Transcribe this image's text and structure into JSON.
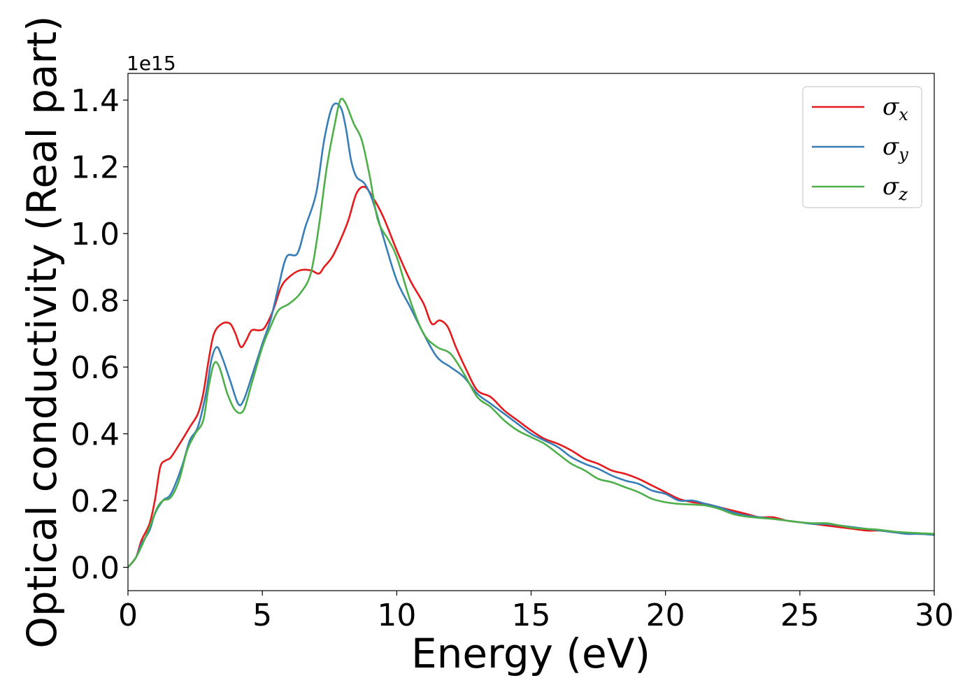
{
  "chart_data": {
    "type": "line",
    "title": "",
    "xlabel": "Energy (eV)",
    "ylabel": "Optical conductivity (Real part)",
    "y_offset_text": "1e15",
    "xlim": [
      0,
      30
    ],
    "ylim": [
      -0.07,
      1.48
    ],
    "y_scale_multiplier": 1000000000000000.0,
    "x_ticks": [
      0,
      5,
      10,
      15,
      20,
      25,
      30
    ],
    "x_tick_labels": [
      "0",
      "5",
      "10",
      "15",
      "20",
      "25",
      "30"
    ],
    "y_ticks": [
      0.0,
      0.2,
      0.4,
      0.6,
      0.8,
      1.0,
      1.2,
      1.4
    ],
    "y_tick_labels": [
      "0.0",
      "0.2",
      "0.4",
      "0.6",
      "0.8",
      "1.0",
      "1.2",
      "1.4"
    ],
    "grid": false,
    "legend_position": "top-right",
    "series": [
      {
        "name": "σx",
        "legend_symbol": "σ",
        "legend_subscript": "x",
        "color": "#e41a1c",
        "points": [
          [
            0,
            0
          ],
          [
            0.3,
            0.03
          ],
          [
            0.5,
            0.08
          ],
          [
            0.8,
            0.13
          ],
          [
            1.0,
            0.2
          ],
          [
            1.2,
            0.3
          ],
          [
            1.4,
            0.32
          ],
          [
            1.6,
            0.33
          ],
          [
            2.0,
            0.38
          ],
          [
            2.3,
            0.42
          ],
          [
            2.6,
            0.46
          ],
          [
            2.8,
            0.52
          ],
          [
            3.0,
            0.62
          ],
          [
            3.2,
            0.7
          ],
          [
            3.5,
            0.73
          ],
          [
            3.8,
            0.73
          ],
          [
            4.0,
            0.7
          ],
          [
            4.2,
            0.66
          ],
          [
            4.4,
            0.68
          ],
          [
            4.6,
            0.71
          ],
          [
            4.9,
            0.71
          ],
          [
            5.1,
            0.72
          ],
          [
            5.4,
            0.77
          ],
          [
            5.7,
            0.84
          ],
          [
            6.0,
            0.87
          ],
          [
            6.4,
            0.89
          ],
          [
            6.8,
            0.89
          ],
          [
            7.1,
            0.88
          ],
          [
            7.3,
            0.9
          ],
          [
            7.6,
            0.93
          ],
          [
            7.9,
            0.98
          ],
          [
            8.2,
            1.04
          ],
          [
            8.5,
            1.12
          ],
          [
            8.8,
            1.14
          ],
          [
            9.1,
            1.11
          ],
          [
            9.5,
            1.05
          ],
          [
            10.0,
            0.95
          ],
          [
            10.5,
            0.86
          ],
          [
            11.0,
            0.79
          ],
          [
            11.3,
            0.73
          ],
          [
            11.6,
            0.74
          ],
          [
            11.9,
            0.72
          ],
          [
            12.2,
            0.66
          ],
          [
            12.6,
            0.59
          ],
          [
            13.0,
            0.53
          ],
          [
            13.5,
            0.51
          ],
          [
            14.0,
            0.47
          ],
          [
            14.5,
            0.44
          ],
          [
            15.0,
            0.41
          ],
          [
            15.5,
            0.385
          ],
          [
            16.0,
            0.37
          ],
          [
            16.5,
            0.35
          ],
          [
            17.0,
            0.325
          ],
          [
            17.5,
            0.31
          ],
          [
            18.0,
            0.29
          ],
          [
            18.5,
            0.28
          ],
          [
            19.0,
            0.265
          ],
          [
            19.5,
            0.245
          ],
          [
            20.0,
            0.225
          ],
          [
            20.5,
            0.205
          ],
          [
            21.0,
            0.195
          ],
          [
            21.5,
            0.19
          ],
          [
            22.0,
            0.18
          ],
          [
            22.5,
            0.17
          ],
          [
            23.0,
            0.16
          ],
          [
            23.5,
            0.15
          ],
          [
            24.0,
            0.15
          ],
          [
            24.5,
            0.14
          ],
          [
            25.0,
            0.135
          ],
          [
            25.5,
            0.13
          ],
          [
            26.0,
            0.125
          ],
          [
            26.5,
            0.12
          ],
          [
            27.0,
            0.115
          ],
          [
            27.5,
            0.11
          ],
          [
            28.0,
            0.11
          ],
          [
            28.5,
            0.105
          ],
          [
            29.0,
            0.103
          ],
          [
            29.5,
            0.1
          ],
          [
            30.0,
            0.1
          ]
        ]
      },
      {
        "name": "σy",
        "legend_symbol": "σ",
        "legend_subscript": "y",
        "color": "#377eb8",
        "points": [
          [
            0,
            0
          ],
          [
            0.3,
            0.03
          ],
          [
            0.5,
            0.07
          ],
          [
            0.8,
            0.11
          ],
          [
            1.0,
            0.16
          ],
          [
            1.3,
            0.2
          ],
          [
            1.6,
            0.22
          ],
          [
            2.0,
            0.3
          ],
          [
            2.3,
            0.38
          ],
          [
            2.6,
            0.42
          ],
          [
            2.9,
            0.52
          ],
          [
            3.1,
            0.62
          ],
          [
            3.3,
            0.66
          ],
          [
            3.5,
            0.63
          ],
          [
            3.8,
            0.56
          ],
          [
            4.1,
            0.49
          ],
          [
            4.3,
            0.5
          ],
          [
            4.6,
            0.57
          ],
          [
            5.0,
            0.67
          ],
          [
            5.3,
            0.74
          ],
          [
            5.6,
            0.84
          ],
          [
            5.9,
            0.93
          ],
          [
            6.3,
            0.94
          ],
          [
            6.6,
            1.02
          ],
          [
            7.0,
            1.12
          ],
          [
            7.3,
            1.28
          ],
          [
            7.6,
            1.38
          ],
          [
            7.9,
            1.38
          ],
          [
            8.1,
            1.32
          ],
          [
            8.3,
            1.22
          ],
          [
            8.5,
            1.17
          ],
          [
            8.8,
            1.15
          ],
          [
            9.1,
            1.1
          ],
          [
            9.5,
            0.99
          ],
          [
            10.0,
            0.86
          ],
          [
            10.5,
            0.78
          ],
          [
            11.0,
            0.7
          ],
          [
            11.5,
            0.63
          ],
          [
            12.0,
            0.6
          ],
          [
            12.5,
            0.57
          ],
          [
            13.0,
            0.52
          ],
          [
            13.5,
            0.49
          ],
          [
            14.0,
            0.46
          ],
          [
            14.5,
            0.43
          ],
          [
            15.0,
            0.4
          ],
          [
            15.5,
            0.38
          ],
          [
            16.0,
            0.36
          ],
          [
            16.5,
            0.33
          ],
          [
            17.0,
            0.31
          ],
          [
            17.5,
            0.295
          ],
          [
            18.0,
            0.275
          ],
          [
            18.5,
            0.26
          ],
          [
            19.0,
            0.25
          ],
          [
            19.5,
            0.23
          ],
          [
            20.0,
            0.22
          ],
          [
            20.5,
            0.2
          ],
          [
            21.0,
            0.2
          ],
          [
            21.5,
            0.19
          ],
          [
            22.0,
            0.18
          ],
          [
            22.5,
            0.165
          ],
          [
            23.0,
            0.155
          ],
          [
            23.5,
            0.15
          ],
          [
            24.0,
            0.145
          ],
          [
            24.5,
            0.14
          ],
          [
            25.0,
            0.135
          ],
          [
            25.5,
            0.13
          ],
          [
            26.0,
            0.13
          ],
          [
            26.5,
            0.125
          ],
          [
            27.0,
            0.12
          ],
          [
            27.5,
            0.115
          ],
          [
            28.0,
            0.11
          ],
          [
            28.5,
            0.105
          ],
          [
            29.0,
            0.1
          ],
          [
            29.5,
            0.1
          ],
          [
            30.0,
            0.097
          ]
        ]
      },
      {
        "name": "σz",
        "legend_symbol": "σ",
        "legend_subscript": "z",
        "color": "#4daf4a",
        "points": [
          [
            0,
            0
          ],
          [
            0.3,
            0.03
          ],
          [
            0.6,
            0.08
          ],
          [
            0.9,
            0.14
          ],
          [
            1.1,
            0.18
          ],
          [
            1.3,
            0.2
          ],
          [
            1.6,
            0.21
          ],
          [
            1.9,
            0.26
          ],
          [
            2.2,
            0.35
          ],
          [
            2.5,
            0.4
          ],
          [
            2.8,
            0.44
          ],
          [
            3.0,
            0.54
          ],
          [
            3.2,
            0.61
          ],
          [
            3.4,
            0.6
          ],
          [
            3.7,
            0.52
          ],
          [
            4.0,
            0.47
          ],
          [
            4.3,
            0.47
          ],
          [
            4.6,
            0.55
          ],
          [
            5.0,
            0.66
          ],
          [
            5.3,
            0.72
          ],
          [
            5.6,
            0.77
          ],
          [
            6.0,
            0.79
          ],
          [
            6.4,
            0.82
          ],
          [
            6.8,
            0.88
          ],
          [
            7.1,
            1.02
          ],
          [
            7.4,
            1.2
          ],
          [
            7.7,
            1.33
          ],
          [
            7.9,
            1.4
          ],
          [
            8.1,
            1.39
          ],
          [
            8.4,
            1.33
          ],
          [
            8.7,
            1.28
          ],
          [
            9.0,
            1.17
          ],
          [
            9.3,
            1.04
          ],
          [
            9.7,
            0.98
          ],
          [
            10.0,
            0.93
          ],
          [
            10.5,
            0.8
          ],
          [
            11.0,
            0.7
          ],
          [
            11.5,
            0.66
          ],
          [
            12.0,
            0.64
          ],
          [
            12.5,
            0.58
          ],
          [
            13.0,
            0.51
          ],
          [
            13.5,
            0.48
          ],
          [
            14.0,
            0.44
          ],
          [
            14.5,
            0.41
          ],
          [
            15.0,
            0.39
          ],
          [
            15.5,
            0.37
          ],
          [
            16.0,
            0.34
          ],
          [
            16.5,
            0.31
          ],
          [
            17.0,
            0.29
          ],
          [
            17.5,
            0.265
          ],
          [
            18.0,
            0.255
          ],
          [
            18.5,
            0.24
          ],
          [
            19.0,
            0.225
          ],
          [
            19.5,
            0.205
          ],
          [
            20.0,
            0.195
          ],
          [
            20.5,
            0.19
          ],
          [
            21.0,
            0.188
          ],
          [
            21.5,
            0.185
          ],
          [
            22.0,
            0.175
          ],
          [
            22.5,
            0.16
          ],
          [
            23.0,
            0.152
          ],
          [
            23.5,
            0.148
          ],
          [
            24.0,
            0.145
          ],
          [
            24.5,
            0.14
          ],
          [
            25.0,
            0.135
          ],
          [
            25.5,
            0.132
          ],
          [
            26.0,
            0.132
          ],
          [
            26.5,
            0.125
          ],
          [
            27.0,
            0.118
          ],
          [
            27.5,
            0.115
          ],
          [
            28.0,
            0.112
          ],
          [
            28.5,
            0.107
          ],
          [
            29.0,
            0.104
          ],
          [
            29.5,
            0.102
          ],
          [
            30.0,
            0.1
          ]
        ]
      }
    ]
  }
}
